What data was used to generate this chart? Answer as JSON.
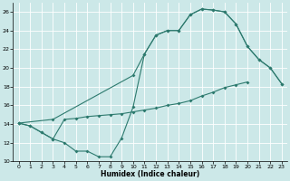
{
  "xlabel": "Humidex (Indice chaleur)",
  "bg_color": "#cce8e8",
  "grid_color": "#ffffff",
  "line_color": "#2d7a6e",
  "xlim": [
    -0.5,
    23.5
  ],
  "ylim": [
    10,
    27
  ],
  "yticks": [
    10,
    12,
    14,
    16,
    18,
    20,
    22,
    24,
    26
  ],
  "xticks": [
    0,
    1,
    2,
    3,
    4,
    5,
    6,
    7,
    8,
    9,
    10,
    11,
    12,
    13,
    14,
    15,
    16,
    17,
    18,
    19,
    20,
    21,
    22,
    23
  ],
  "line_dip_x": [
    0,
    1,
    2,
    3,
    4,
    5,
    6,
    7,
    8,
    9,
    10,
    11,
    12,
    13,
    14,
    15,
    16,
    17,
    18,
    19,
    20,
    21,
    22,
    23
  ],
  "line_dip_y": [
    14.1,
    13.8,
    13.1,
    12.4,
    12.0,
    11.1,
    11.1,
    10.5,
    10.5,
    12.5,
    15.8,
    21.5,
    23.5,
    24.0,
    24.0,
    25.7,
    26.3,
    26.2,
    26.0,
    24.7,
    22.3,
    20.9,
    20.0,
    18.3
  ],
  "line_flat_x": [
    0,
    1,
    2,
    3,
    4,
    5,
    6,
    7,
    8,
    9,
    10,
    11,
    12,
    13,
    14,
    15,
    16,
    17,
    18,
    19,
    20
  ],
  "line_flat_y": [
    14.1,
    13.8,
    13.1,
    12.4,
    14.5,
    14.6,
    14.8,
    14.9,
    15.0,
    15.1,
    15.3,
    15.5,
    15.7,
    16.0,
    16.2,
    16.5,
    17.0,
    17.4,
    17.9,
    18.2,
    18.5
  ],
  "line_tri_x": [
    0,
    3,
    10,
    11,
    12,
    13,
    14,
    15,
    16,
    17,
    18,
    19,
    20,
    21,
    22,
    23
  ],
  "line_tri_y": [
    14.1,
    14.5,
    19.2,
    21.5,
    23.5,
    24.0,
    24.0,
    25.7,
    26.3,
    26.2,
    26.0,
    24.7,
    22.3,
    20.9,
    20.0,
    18.3
  ]
}
